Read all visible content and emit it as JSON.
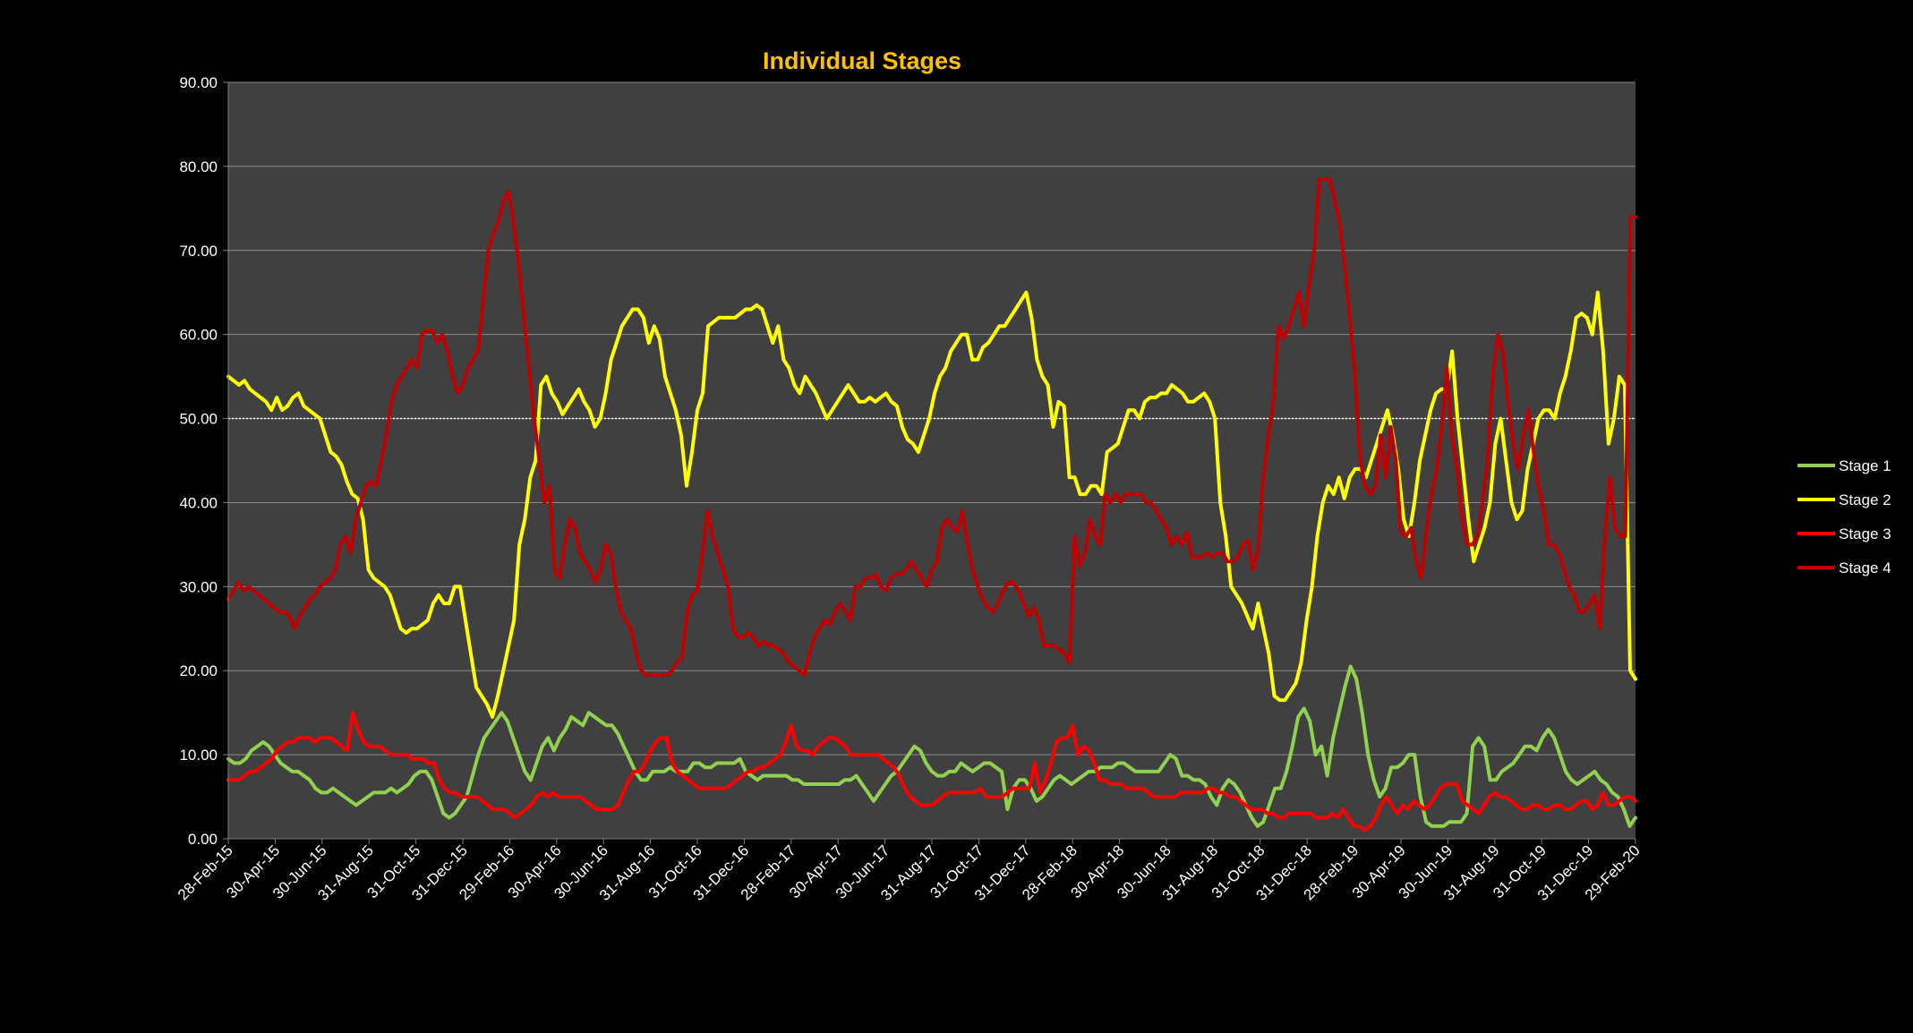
{
  "chart_data": {
    "type": "line",
    "title": "Individual Stages",
    "xlabel": "",
    "ylabel": "",
    "ylim": [
      0,
      90
    ],
    "yticks": [
      "0.00",
      "10.00",
      "20.00",
      "30.00",
      "40.00",
      "50.00",
      "60.00",
      "70.00",
      "80.00",
      "90.00"
    ],
    "xticks": [
      "28-Feb-15",
      "30-Apr-15",
      "30-Jun-15",
      "31-Aug-15",
      "31-Oct-15",
      "31-Dec-15",
      "29-Feb-16",
      "30-Apr-16",
      "30-Jun-16",
      "31-Aug-16",
      "31-Oct-16",
      "31-Dec-16",
      "28-Feb-17",
      "30-Apr-17",
      "30-Jun-17",
      "31-Aug-17",
      "31-Oct-17",
      "31-Dec-17",
      "28-Feb-18",
      "30-Apr-18",
      "30-Jun-18",
      "31-Aug-18",
      "31-Oct-18",
      "31-Dec-18",
      "28-Feb-19",
      "30-Apr-19",
      "30-Jun-19",
      "31-Aug-19",
      "31-Oct-19",
      "31-Dec-19",
      "29-Feb-20"
    ],
    "reference_line": 50,
    "grid": true,
    "legend_position": "right",
    "series": [
      {
        "name": "Stage 1",
        "color": "#92d050",
        "values": [
          9.5,
          9,
          9,
          9.5,
          10.5,
          11,
          11.5,
          11,
          10,
          9,
          8.5,
          8,
          8,
          7.5,
          7,
          6,
          5.5,
          5.5,
          6,
          5.5,
          5,
          4.5,
          4,
          4.5,
          5,
          5.5,
          5.5,
          5.5,
          6,
          5.5,
          6,
          6.5,
          7.5,
          8,
          8,
          7,
          5,
          3,
          2.5,
          3,
          4,
          5,
          7.5,
          10,
          12,
          13,
          14,
          15,
          14,
          12,
          10,
          8,
          7,
          9,
          11,
          12,
          10.5,
          12,
          13,
          14.5,
          14,
          13.5,
          15,
          14.5,
          14,
          13.5,
          13.5,
          12.5,
          11,
          9.5,
          8,
          7,
          7,
          8,
          8,
          8,
          8.5,
          8,
          8,
          8,
          9,
          9,
          8.5,
          8.5,
          9,
          9,
          9,
          9,
          9.5,
          8,
          7.5,
          7,
          7.5,
          7.5,
          7.5,
          7.5,
          7.5,
          7,
          7,
          6.5,
          6.5,
          6.5,
          6.5,
          6.5,
          6.5,
          6.5,
          7,
          7,
          7.5,
          6.5,
          5.5,
          4.5,
          5.5,
          6.5,
          7.5,
          8,
          9,
          10,
          11,
          10.5,
          9,
          8,
          7.5,
          7.5,
          8,
          8,
          9,
          8.5,
          8,
          8.5,
          9,
          9,
          8.5,
          8,
          3.5,
          6,
          7,
          7,
          6,
          4.5,
          5,
          6,
          7,
          7.5,
          7,
          6.5,
          7,
          7.5,
          8,
          8,
          8.5,
          8.5,
          8.5,
          9,
          9,
          8.5,
          8,
          8,
          8,
          8,
          8,
          9,
          10,
          9.5,
          7.5,
          7.5,
          7,
          7,
          6.5,
          5,
          4,
          6,
          7,
          6.5,
          5.5,
          4,
          2.5,
          1.5,
          2,
          4,
          6,
          6,
          8,
          11,
          14.5,
          15.5,
          14,
          10,
          11,
          7.5,
          12,
          15,
          18,
          20.5,
          19,
          15,
          10,
          7,
          5,
          6,
          8.5,
          8.5,
          9,
          10,
          10,
          5,
          2,
          1.5,
          1.5,
          1.5,
          2,
          2,
          2,
          3,
          11,
          12,
          11,
          7,
          7,
          8,
          8.5,
          9,
          10,
          11,
          11,
          10.5,
          12,
          13,
          12,
          10,
          8,
          7,
          6.5,
          7,
          7.5,
          8,
          7,
          6.5,
          5.5,
          5,
          3.5,
          1.5,
          2.5
        ]
      },
      {
        "name": "Stage 2",
        "color": "#ffff00",
        "values": [
          55,
          54.5,
          54,
          54.5,
          53.5,
          53,
          52.5,
          52,
          51,
          52.5,
          51,
          51.5,
          52.5,
          53,
          51.5,
          51,
          50.5,
          50,
          48,
          46,
          45.5,
          44.5,
          42.5,
          41,
          40.5,
          38,
          32,
          31,
          30.5,
          30,
          29,
          27,
          25,
          24.5,
          25,
          25,
          25.5,
          26,
          28,
          29,
          28,
          28,
          30,
          30,
          26,
          22,
          18,
          17,
          16,
          14.5,
          17,
          20,
          23,
          26,
          35,
          38,
          43,
          45,
          54,
          55,
          53,
          52,
          50.5,
          51.5,
          52.5,
          53.5,
          52,
          51,
          49,
          50,
          53,
          57,
          59,
          61,
          62,
          63,
          63,
          62,
          59,
          61,
          59.5,
          55,
          53,
          51,
          48,
          42,
          46,
          51,
          53,
          61,
          61.5,
          62,
          62,
          62,
          62,
          62.5,
          63,
          63,
          63.5,
          63,
          61,
          59,
          61,
          57,
          56,
          54,
          53,
          55,
          54,
          53,
          51.5,
          50,
          51,
          52,
          53,
          54,
          53,
          52,
          52,
          52.5,
          52,
          52.5,
          53,
          52,
          51.5,
          49,
          47.5,
          47,
          46,
          48,
          50,
          53,
          55,
          56,
          58,
          59,
          60,
          60,
          57,
          57,
          58.5,
          59,
          60,
          61,
          61,
          62,
          63,
          64,
          65,
          62,
          57,
          55,
          54,
          49,
          52,
          51.5,
          43,
          43,
          41,
          41,
          42,
          42,
          41,
          46,
          46.5,
          47,
          49,
          51,
          51,
          50,
          52,
          52.5,
          52.5,
          53,
          53,
          54,
          53.5,
          53,
          52,
          52,
          52.5,
          53,
          52,
          50,
          40,
          36,
          30,
          29,
          28,
          26.5,
          25,
          28,
          25,
          22,
          17,
          16.5,
          16.5,
          17.5,
          18.5,
          21,
          26,
          30,
          36,
          40,
          42,
          41,
          43,
          40.5,
          43,
          44,
          44,
          43,
          45,
          47,
          49,
          51,
          48,
          44,
          38,
          36,
          40,
          45,
          48,
          51,
          53,
          53.5,
          53.5,
          58,
          50,
          44,
          38,
          33,
          35,
          37,
          40,
          47,
          50,
          45,
          40,
          38,
          39,
          44,
          47,
          50,
          51,
          51,
          50,
          53,
          55,
          58,
          62,
          62.5,
          62,
          60,
          65,
          58,
          47,
          50,
          55,
          54,
          20,
          19
        ]
      },
      {
        "name": "Stage 3",
        "color": "#ff0000",
        "values": [
          7,
          7,
          7,
          7.5,
          8,
          8,
          8.5,
          9,
          9.5,
          10.5,
          11,
          11.5,
          11.5,
          12,
          12,
          12,
          11.5,
          12,
          12,
          12,
          11.5,
          11,
          10.5,
          15,
          13,
          11.5,
          11,
          11,
          11,
          10.5,
          10,
          10,
          10,
          10,
          9.5,
          9.5,
          9.5,
          9,
          9,
          7,
          6,
          5.5,
          5.5,
          5,
          5,
          5,
          5,
          4.5,
          4,
          3.5,
          3.5,
          3.5,
          3,
          2.5,
          3,
          3.5,
          4,
          5,
          5.5,
          5,
          5.5,
          5,
          5,
          5,
          5,
          5,
          4.5,
          4,
          3.5,
          3.5,
          3.5,
          3.5,
          4,
          5.5,
          7,
          8,
          8,
          9,
          10.5,
          11.5,
          12,
          12,
          9,
          8,
          7.5,
          7,
          6.5,
          6,
          6,
          6,
          6,
          6,
          6,
          6.5,
          7,
          7.5,
          8,
          8,
          8.5,
          8.5,
          9,
          9.5,
          10,
          11.5,
          13.5,
          11,
          10.5,
          10.5,
          10,
          11,
          11.5,
          12,
          12,
          11.5,
          11,
          10,
          10,
          10,
          10,
          10,
          10,
          9.5,
          9,
          8.5,
          7.5,
          6,
          5,
          4.5,
          4,
          4,
          4,
          4.5,
          5,
          5.5,
          5.5,
          5.5,
          5.5,
          5.5,
          5.5,
          6,
          5,
          5,
          5,
          5,
          5.5,
          6,
          6,
          6,
          6,
          9,
          5.5,
          7,
          9,
          11.5,
          12,
          12,
          13.5,
          10,
          11,
          10.5,
          9,
          7,
          7,
          6.5,
          6.5,
          6.5,
          6,
          6,
          6,
          6,
          5.5,
          5,
          5,
          5,
          5,
          5,
          5.5,
          5.5,
          5.5,
          5.5,
          5.5,
          6,
          6,
          5.5,
          5.5,
          5,
          5,
          4.5,
          4,
          3.5,
          3.5,
          3.5,
          3,
          3,
          2.5,
          2.5,
          3,
          3,
          3,
          3,
          3,
          2.5,
          2.5,
          2.5,
          3,
          2.5,
          3.5,
          2.5,
          1.5,
          1.5,
          1,
          1.5,
          2.5,
          4,
          5,
          4,
          3,
          4,
          3.5,
          4.5,
          4,
          3.5,
          4,
          5,
          6,
          6.5,
          6.5,
          6.5,
          4.5,
          4,
          3.5,
          3,
          4,
          5,
          5.5,
          5,
          5,
          4.5,
          4,
          3.5,
          3.5,
          4,
          4,
          3.5,
          3.5,
          4,
          4,
          3.5,
          3.5,
          4,
          4.5,
          4.5,
          3.5,
          4,
          5.5,
          4,
          4,
          4.5,
          5,
          5,
          4.5
        ]
      },
      {
        "name": "Stage 4",
        "color": "#c00000",
        "values": [
          28.5,
          29.5,
          30.5,
          29.5,
          30,
          29.5,
          29,
          28.5,
          28,
          27.5,
          27,
          27,
          26.5,
          25,
          26.5,
          27.5,
          28.5,
          29,
          30,
          30.5,
          31,
          32,
          35,
          36,
          34,
          38,
          40,
          42,
          42.5,
          42,
          45,
          48,
          52,
          54,
          55,
          56,
          57,
          56,
          60,
          60.5,
          60.5,
          59,
          60,
          58,
          55,
          53,
          54,
          56,
          57,
          58,
          64,
          70,
          72,
          73.5,
          76,
          77,
          73,
          68,
          62,
          56,
          50,
          45,
          40,
          42,
          32,
          31,
          35,
          38,
          37,
          34,
          33,
          32,
          30.5,
          32,
          35,
          34,
          30,
          27,
          26,
          25,
          22,
          20,
          19.5,
          19.5,
          19.5,
          19.5,
          19.5,
          20,
          21,
          21.5,
          27,
          29,
          29.5,
          34,
          39,
          36,
          34,
          32,
          30,
          25,
          24,
          24,
          24.5,
          24,
          23,
          23.5,
          23,
          23,
          22.5,
          22,
          21,
          20.5,
          20,
          19.5,
          22,
          24,
          25,
          26,
          25.5,
          27,
          28,
          27,
          26,
          30,
          30,
          31,
          31,
          31.5,
          30,
          29.5,
          31,
          31.5,
          31.5,
          32,
          33,
          32,
          31,
          30,
          32,
          33,
          37,
          38,
          37,
          36.5,
          39,
          35,
          32,
          30,
          28.5,
          27.5,
          27,
          28,
          29.5,
          30.5,
          30.5,
          29.5,
          28,
          26.5,
          27.5,
          26,
          23,
          23,
          23,
          22.5,
          22,
          21,
          36,
          32.5,
          34,
          38,
          36,
          35,
          41,
          40,
          41,
          40,
          41,
          41,
          41,
          41,
          40,
          40,
          39,
          38,
          37,
          35,
          36,
          35,
          36.5,
          33.5,
          33.5,
          33.5,
          34,
          33.5,
          34,
          34,
          33,
          33,
          33.5,
          35,
          35.5,
          32,
          34.5,
          43,
          48,
          52,
          61,
          59.5,
          61,
          63,
          65,
          61,
          66,
          70,
          78.5,
          78.5,
          78.5,
          76,
          73,
          68,
          62,
          55,
          45,
          42,
          41,
          42,
          48,
          43,
          49,
          45,
          36.5,
          36,
          37,
          33,
          31,
          37,
          41,
          44,
          49,
          56,
          48,
          44,
          38,
          35,
          35,
          36,
          40,
          45,
          55,
          60,
          58,
          52,
          47,
          44,
          48,
          51,
          46,
          42,
          39,
          35,
          35,
          34,
          32,
          30,
          29,
          27,
          27,
          28,
          29,
          25,
          36,
          43,
          37,
          36,
          36,
          74,
          74
        ]
      }
    ]
  }
}
